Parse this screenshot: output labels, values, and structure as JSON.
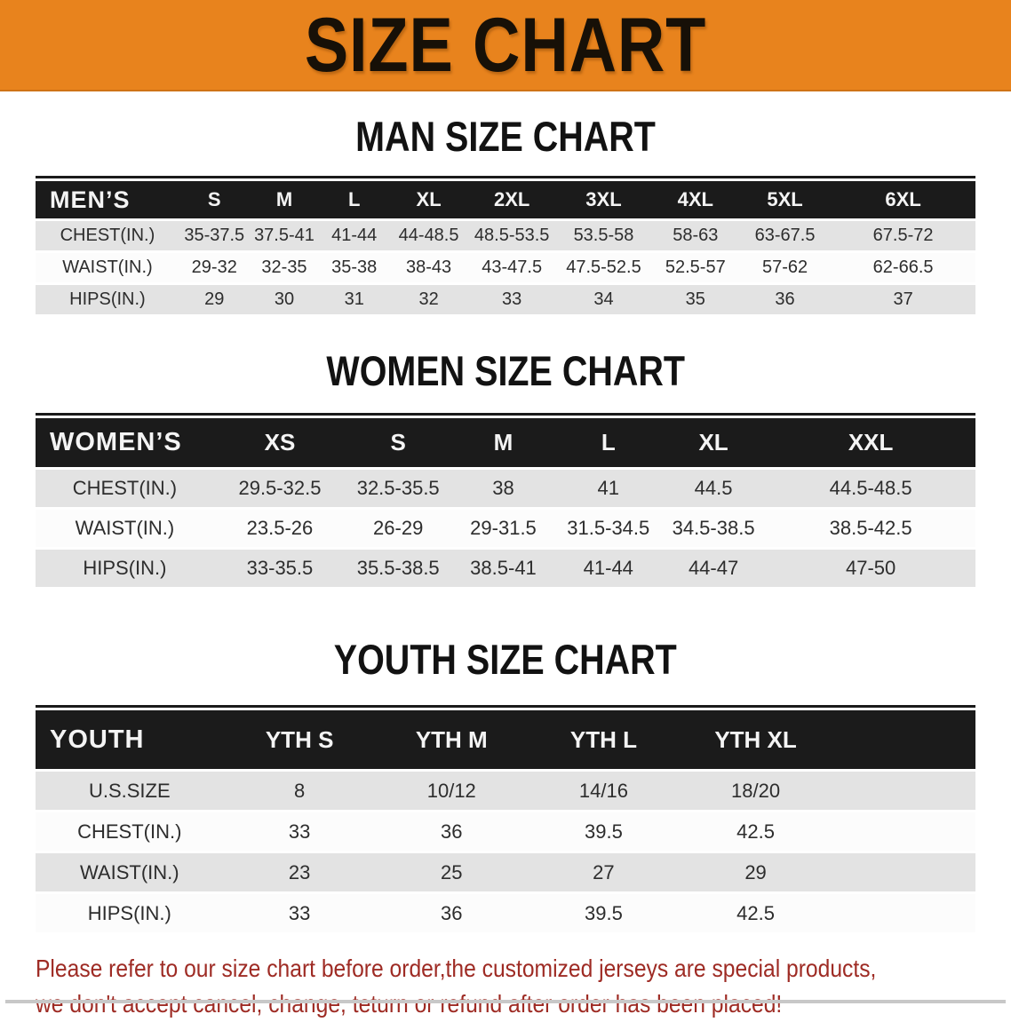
{
  "banner": {
    "title": "SIZE CHART"
  },
  "colors": {
    "banner_bg": "#E8831D",
    "band_bg": "#1B1B1B",
    "row_alt": "#E3E3E3",
    "accent_text": "#9E2B24"
  },
  "sections": {
    "men": {
      "title": "MAN SIZE CHART",
      "table": {
        "header": [
          "MEN’S",
          "S",
          "M",
          "L",
          "XL",
          "2XL",
          "3XL",
          "4XL",
          "5XL",
          "6XL"
        ],
        "rows": [
          [
            "CHEST(IN.)",
            "35-37.5",
            "37.5-41",
            "41-44",
            "44-48.5",
            "48.5-53.5",
            "53.5-58",
            "58-63",
            "63-67.5",
            "67.5-72"
          ],
          [
            "WAIST(IN.)",
            "29-32",
            "32-35",
            "35-38",
            "38-43",
            "43-47.5",
            "47.5-52.5",
            "52.5-57",
            "57-62",
            "62-66.5"
          ],
          [
            "HIPS(IN.)",
            "29",
            "30",
            "31",
            "32",
            "33",
            "34",
            "35",
            "36",
            "37"
          ]
        ]
      }
    },
    "women": {
      "title": "WOMEN SIZE CHART",
      "table": {
        "header": [
          "WOMEN’S",
          "XS",
          "S",
          "M",
          "L",
          "XL",
          "XXL"
        ],
        "rows": [
          [
            "CHEST(IN.)",
            "29.5-32.5",
            "32.5-35.5",
            "38",
            "41",
            "44.5",
            "44.5-48.5"
          ],
          [
            "WAIST(IN.)",
            "23.5-26",
            "26-29",
            "29-31.5",
            "31.5-34.5",
            "34.5-38.5",
            "38.5-42.5"
          ],
          [
            "HIPS(IN.)",
            "33-35.5",
            "35.5-38.5",
            "38.5-41",
            "41-44",
            "44-47",
            "47-50"
          ]
        ]
      }
    },
    "youth": {
      "title": "YOUTH SIZE CHART",
      "table": {
        "header": [
          "YOUTH",
          "YTH S",
          "YTH M",
          "YTH L",
          "YTH XL",
          ""
        ],
        "rows": [
          [
            "U.S.SIZE",
            "8",
            "10/12",
            "14/16",
            "18/20",
            ""
          ],
          [
            "CHEST(IN.)",
            "33",
            "36",
            "39.5",
            "42.5",
            ""
          ],
          [
            "WAIST(IN.)",
            "23",
            "25",
            "27",
            "29",
            ""
          ],
          [
            "HIPS(IN.)",
            "33",
            "36",
            "39.5",
            "42.5",
            ""
          ]
        ]
      }
    }
  },
  "disclaimer": {
    "line1": "Please refer to our size chart before order,the customized jerseys are special products,",
    "line2": "we don't accept cancel, change, teturn or refund after order has been placed!"
  }
}
